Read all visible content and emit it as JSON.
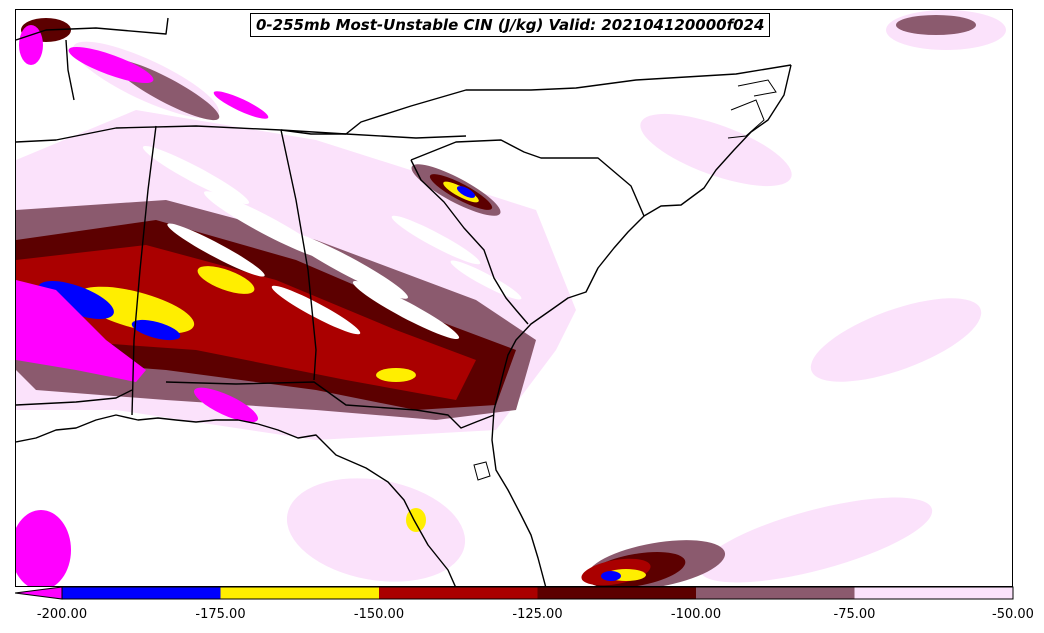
{
  "title": "0-255mb Most-Unstable CIN (J/kg) Valid: 202104120000f024",
  "colorbar": {
    "levels": [
      "-200.00",
      "-175.00",
      "-150.00",
      "-125.00",
      "-100.00",
      "-75.00",
      "-50.00"
    ],
    "colors": [
      "#0000ff",
      "#ffee00",
      "#aa0000",
      "#5c0000",
      "#8b5a6e",
      "#fbe2fb"
    ],
    "under_color": "#ff00ff"
  },
  "palette": {
    "magenta": "#ff00ff",
    "blue": "#0000ff",
    "yellow": "#ffee00",
    "red": "#aa0000",
    "darkred": "#5c0000",
    "mauve": "#8b5a6e",
    "pink": "#fbe2fb"
  }
}
